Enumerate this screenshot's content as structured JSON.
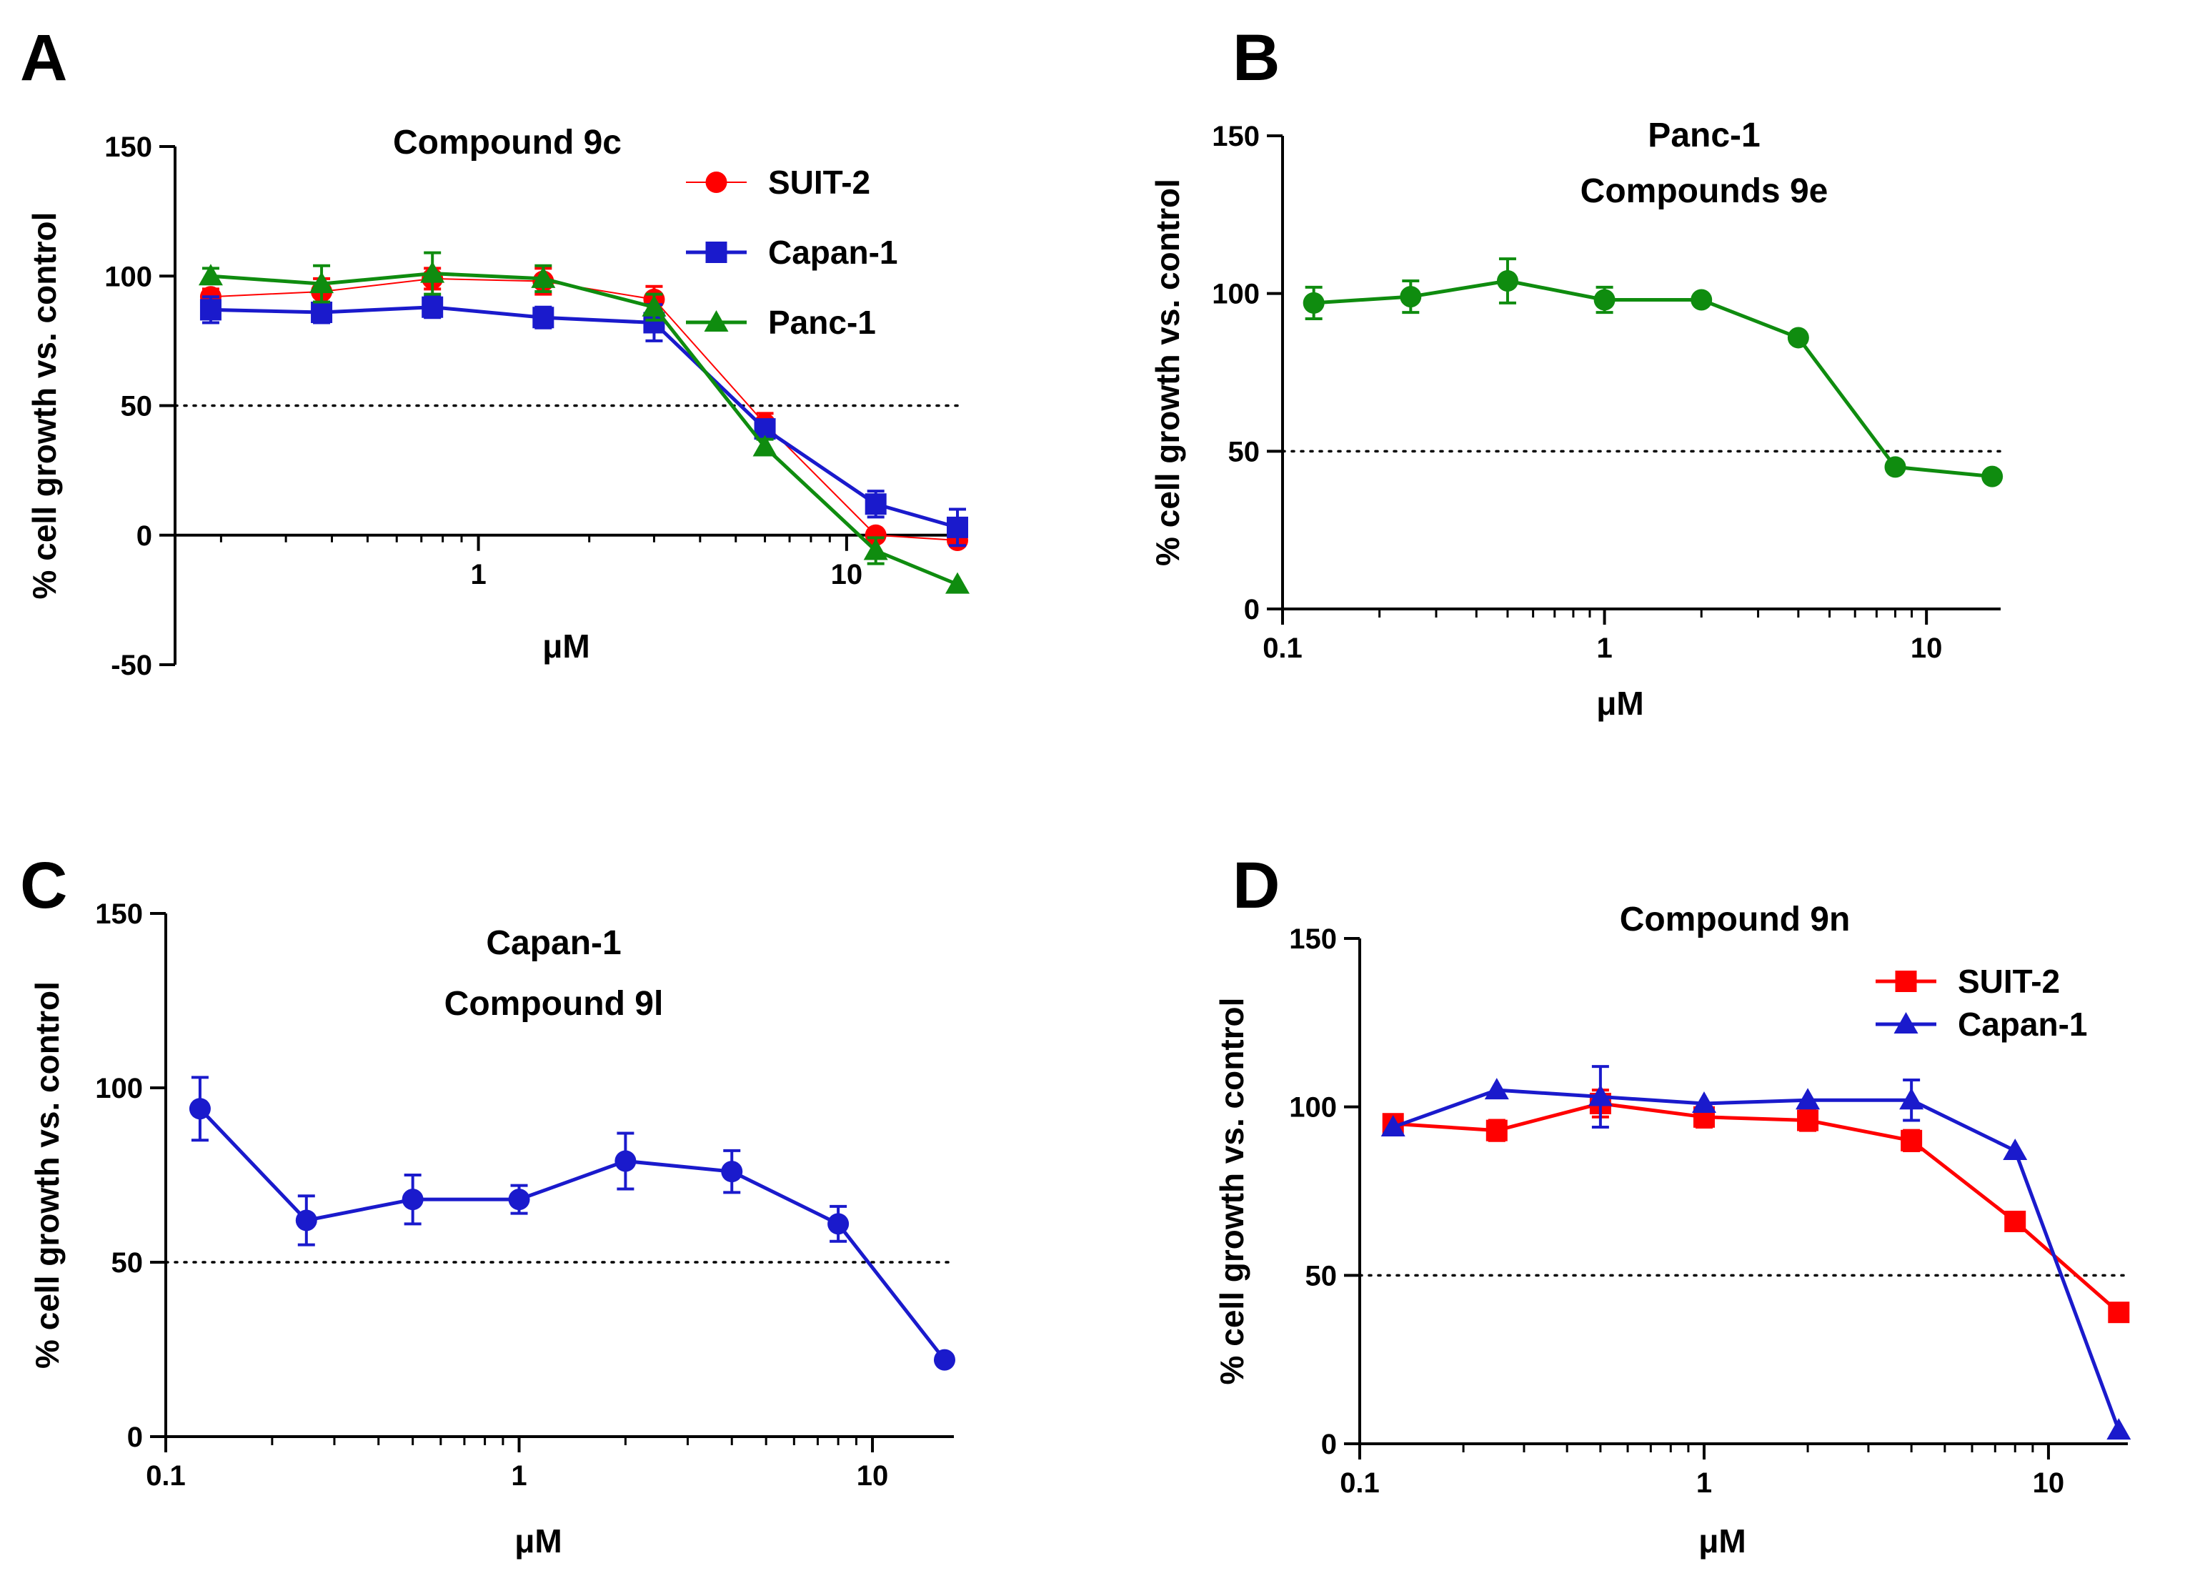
{
  "figure": {
    "colors": {
      "red": "#ff0000",
      "blue": "#1a1acc",
      "green": "#0f8c0f",
      "black": "#000000"
    }
  },
  "chart_data": [
    {
      "id": "A",
      "panel_label": "A",
      "type": "line",
      "title_lines": [
        "Compound 9c"
      ],
      "xlabel": "μM",
      "ylabel": "% cell growth vs. control",
      "xscale": "log",
      "xlim": [
        0.15,
        20
      ],
      "ylim": [
        -50,
        150
      ],
      "xticks": [
        1,
        10
      ],
      "xtick_labels": [
        "1",
        "10"
      ],
      "yticks": [
        -50,
        0,
        50,
        100,
        150
      ],
      "reference_line": 50,
      "x_axis_at": 0,
      "legend": "top-right",
      "x": [
        0.1875,
        0.375,
        0.75,
        1.5,
        3,
        6,
        12,
        20
      ],
      "series": [
        {
          "name": "SUIT-2",
          "color": "#ff0000",
          "marker": "circle",
          "linewidth": 2,
          "values": [
            92,
            94,
            99,
            98,
            91,
            43,
            0,
            -2
          ],
          "errors": [
            3,
            5,
            4,
            5,
            5,
            4,
            2,
            2
          ]
        },
        {
          "name": "Capan-1",
          "color": "#1a1acc",
          "marker": "square",
          "linewidth": 5,
          "values": [
            87,
            86,
            88,
            84,
            82,
            41,
            12,
            3
          ],
          "errors": [
            5,
            4,
            4,
            4,
            7,
            3,
            5,
            7
          ]
        },
        {
          "name": "Panc-1",
          "color": "#0f8c0f",
          "marker": "triangle",
          "linewidth": 5,
          "values": [
            100,
            97,
            101,
            99,
            88,
            34,
            -6,
            -19
          ],
          "errors": [
            3,
            7,
            8,
            5,
            5,
            3,
            5,
            2
          ]
        }
      ]
    },
    {
      "id": "B",
      "panel_label": "B",
      "type": "line",
      "title_lines": [
        "Panc-1",
        "Compounds 9e"
      ],
      "xlabel": "μM",
      "ylabel": "% cell growth vs. control",
      "xscale": "log",
      "xlim": [
        0.1,
        17
      ],
      "ylim": [
        0,
        150
      ],
      "xticks": [
        0.1,
        1,
        10
      ],
      "xtick_labels": [
        "0.1",
        "1",
        "10"
      ],
      "yticks": [
        0,
        50,
        100,
        150
      ],
      "reference_line": 50,
      "x": [
        0.125,
        0.25,
        0.5,
        1,
        2,
        4,
        8,
        16
      ],
      "series": [
        {
          "name": "Panc-1",
          "color": "#0f8c0f",
          "marker": "circle",
          "linewidth": 5,
          "values": [
            97,
            99,
            104,
            98,
            98,
            86,
            45,
            42
          ],
          "errors": [
            5,
            5,
            7,
            4,
            2,
            2,
            2,
            2
          ]
        }
      ]
    },
    {
      "id": "C",
      "panel_label": "C",
      "type": "line",
      "title_lines": [
        "Capan-1",
        "Compound 9l"
      ],
      "xlabel": "μM",
      "ylabel": "% cell growth vs. control",
      "xscale": "log",
      "xlim": [
        0.1,
        17
      ],
      "ylim": [
        0,
        150
      ],
      "xticks": [
        0.1,
        1,
        10
      ],
      "xtick_labels": [
        "0.1",
        "1",
        "10"
      ],
      "yticks": [
        0,
        50,
        100,
        150
      ],
      "reference_line": 50,
      "x": [
        0.125,
        0.25,
        0.5,
        1,
        2,
        4,
        8,
        16
      ],
      "series": [
        {
          "name": "Capan-1",
          "color": "#1a1acc",
          "marker": "circle",
          "linewidth": 5,
          "values": [
            94,
            62,
            68,
            68,
            79,
            76,
            61,
            22
          ],
          "errors": [
            9,
            7,
            7,
            4,
            8,
            6,
            5,
            2
          ]
        }
      ]
    },
    {
      "id": "D",
      "panel_label": "D",
      "type": "line",
      "title_lines": [
        "Compound 9n"
      ],
      "xlabel": "μM",
      "ylabel": "% cell growth vs. control",
      "xscale": "log",
      "xlim": [
        0.1,
        17
      ],
      "ylim": [
        0,
        150
      ],
      "xticks": [
        0.1,
        1,
        10
      ],
      "xtick_labels": [
        "0.1",
        "1",
        "10"
      ],
      "yticks": [
        0,
        50,
        100,
        150
      ],
      "reference_line": 50,
      "legend": "top-right",
      "x": [
        0.125,
        0.25,
        0.5,
        1,
        2,
        4,
        8,
        16
      ],
      "series": [
        {
          "name": "SUIT-2",
          "color": "#ff0000",
          "marker": "square",
          "linewidth": 5,
          "values": [
            95,
            93,
            101,
            97,
            96,
            90,
            66,
            39
          ],
          "errors": [
            2,
            3,
            4,
            3,
            3,
            3,
            2,
            2
          ]
        },
        {
          "name": "Capan-1",
          "color": "#1a1acc",
          "marker": "triangle",
          "linewidth": 5,
          "values": [
            94,
            105,
            103,
            101,
            102,
            102,
            87,
            4
          ],
          "errors": [
            2,
            2,
            9,
            2,
            2,
            6,
            2,
            2
          ]
        }
      ]
    }
  ]
}
